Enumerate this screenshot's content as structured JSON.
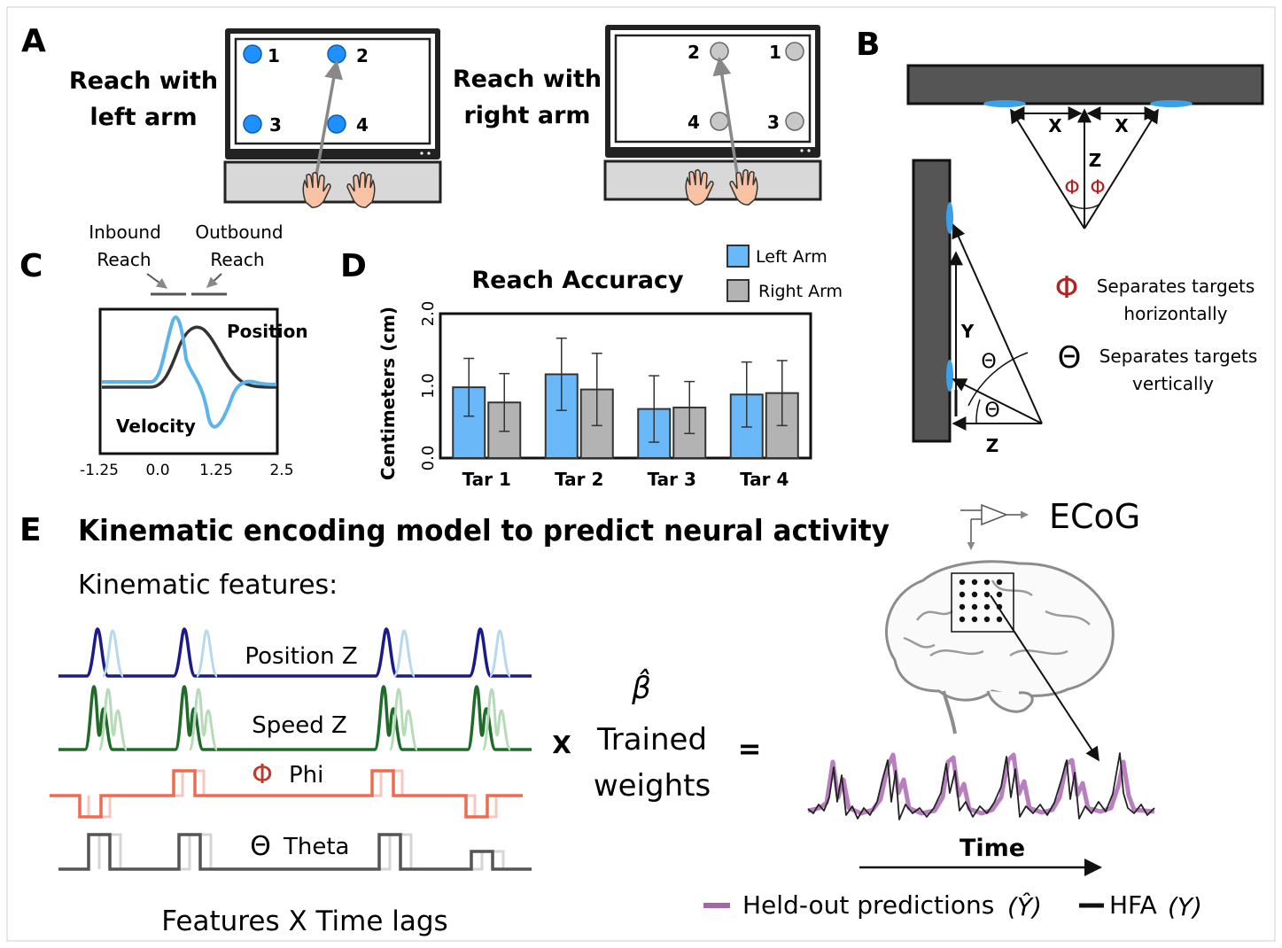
{
  "panels": {
    "A": {
      "letter": "A",
      "left_label_line1": "Reach with",
      "left_label_line2": "left arm",
      "right_label_line1": "Reach with",
      "right_label_line2": "right arm",
      "left_targets": [
        "1",
        "2",
        "3",
        "4"
      ],
      "right_targets": [
        "2",
        "1",
        "4",
        "3"
      ],
      "left_target_color": "#1e90ff",
      "right_target_color": "#c8c8c8"
    },
    "B": {
      "letter": "B",
      "x_label": "X",
      "z_label": "Z",
      "y_label": "Y",
      "phi_symbol": "Φ",
      "theta_symbol": "Θ",
      "legend_phi_line1": "Separates targets",
      "legend_phi_line2": "horizontally",
      "legend_theta_line1": "Separates targets",
      "legend_theta_line2": "vertically"
    },
    "C": {
      "letter": "C",
      "inbound_line1": "Inbound",
      "inbound_line2": "Reach",
      "outbound_line1": "Outbound",
      "outbound_line2": "Reach",
      "position_label": "Position",
      "velocity_label": "Velocity",
      "x_ticks": [
        "-1.25",
        "0.0",
        "1.25",
        "2.5"
      ],
      "position_color": "#333333",
      "velocity_color": "#5bb4ea"
    },
    "D": {
      "letter": "D",
      "legend_left": "Left Arm",
      "legend_right": "Right Arm",
      "left_color": "#6ab8f7",
      "right_color": "#b3b3b3"
    },
    "E": {
      "letter": "E",
      "title": "Kinematic encoding model to predict neural activity",
      "features_heading": "Kinematic features:",
      "traces": [
        {
          "label": "Position Z",
          "color": "#1a1a8c"
        },
        {
          "label": "Speed Z",
          "color": "#1e6b2a"
        },
        {
          "label": "Phi",
          "symbol": "Φ",
          "color": "#f06a4e"
        },
        {
          "label": "Theta",
          "symbol": "Θ",
          "color": "#555555"
        }
      ],
      "multiply": "X",
      "beta": "β̂",
      "weights_line1": "Trained",
      "weights_line2": "weights",
      "equals": "=",
      "ecog": "ECoG",
      "time_label": "Time",
      "footer": "Features X Time lags",
      "legend_pred": "Held-out predictions",
      "legend_pred_math": "(Ŷ)",
      "legend_hfa": "HFA",
      "legend_hfa_math": "(Y)",
      "pred_color": "#a066a8",
      "hfa_color": "#222222"
    }
  },
  "chart_data": {
    "type": "bar",
    "title": "Reach Accuracy",
    "ylabel": "Centimeters (cm)",
    "xlabel": "",
    "categories": [
      "Tar 1",
      "Tar 2",
      "Tar 3",
      "Tar 4"
    ],
    "ylim": [
      0,
      2.0
    ],
    "yticks": [
      "0.0",
      "1.0",
      "2.0"
    ],
    "series": [
      {
        "name": "Left Arm",
        "values": [
          0.98,
          1.16,
          0.68,
          0.88
        ],
        "errors": [
          0.4,
          0.5,
          0.46,
          0.45
        ]
      },
      {
        "name": "Right Arm",
        "values": [
          0.77,
          0.95,
          0.7,
          0.9
        ],
        "errors": [
          0.4,
          0.5,
          0.36,
          0.45
        ]
      }
    ],
    "legend": "top-right",
    "grid": false
  }
}
